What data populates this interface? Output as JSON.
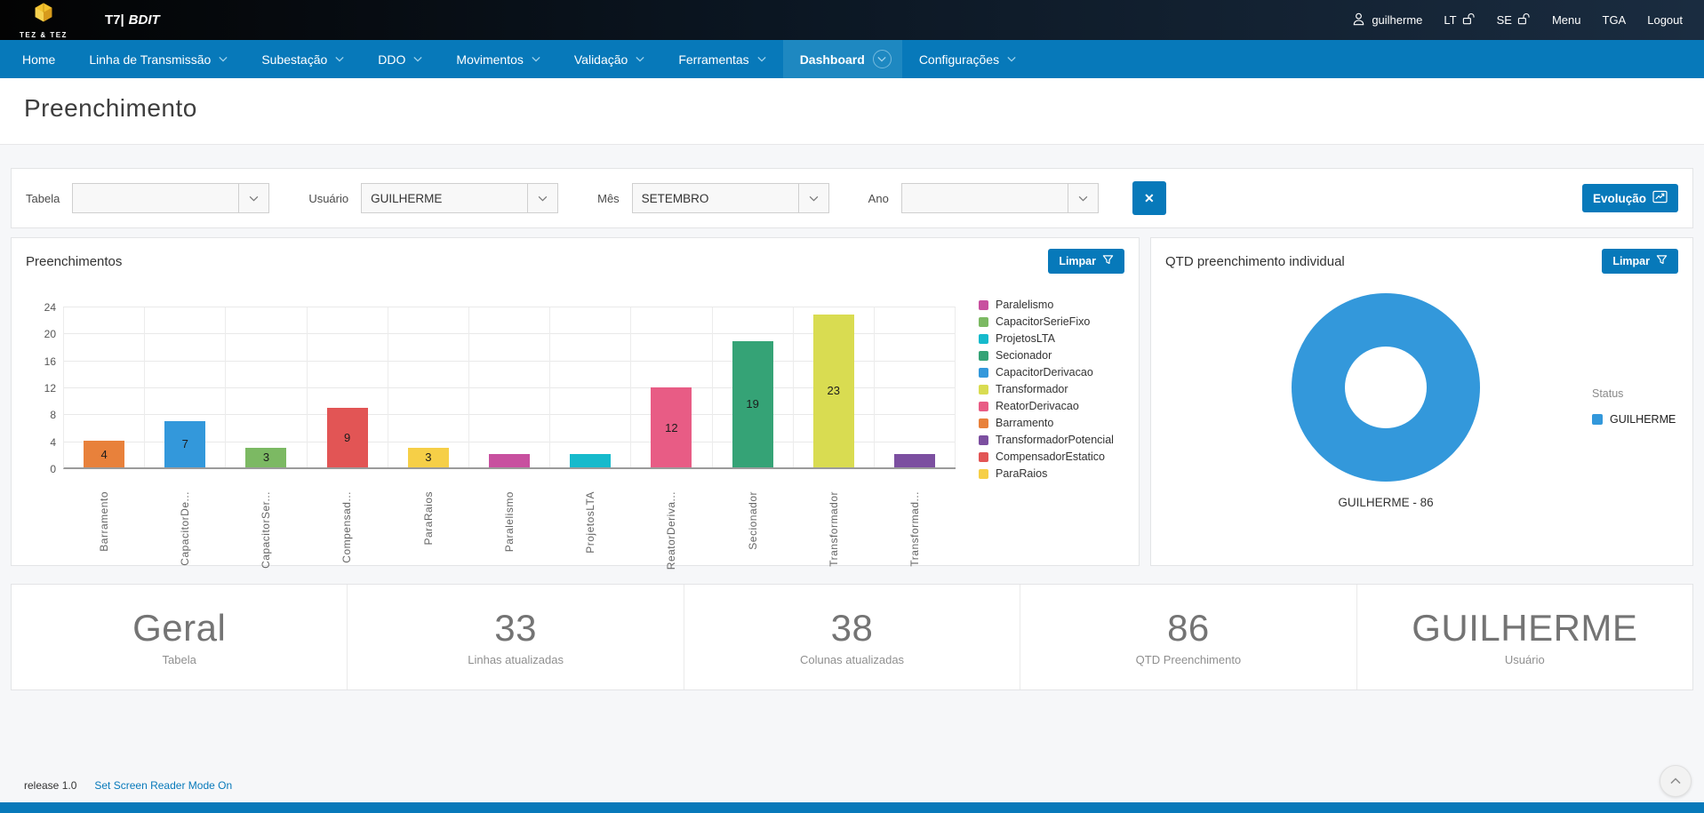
{
  "topbar": {
    "logo_text": "TEZ & TEZ",
    "app_code": "T7|",
    "app_name": "BDIT",
    "username": "guilherme",
    "lt_label": "LT",
    "se_label": "SE",
    "menu_label": "Menu",
    "tga_label": "TGA",
    "logout_label": "Logout"
  },
  "nav": {
    "items": [
      {
        "label": "Home",
        "dropdown": false,
        "active": false
      },
      {
        "label": "Linha de Transmissão",
        "dropdown": true,
        "active": false
      },
      {
        "label": "Subestação",
        "dropdown": true,
        "active": false
      },
      {
        "label": "DDO",
        "dropdown": true,
        "active": false
      },
      {
        "label": "Movimentos",
        "dropdown": true,
        "active": false
      },
      {
        "label": "Validação",
        "dropdown": true,
        "active": false
      },
      {
        "label": "Ferramentas",
        "dropdown": true,
        "active": false
      },
      {
        "label": "Dashboard",
        "dropdown": true,
        "active": true
      },
      {
        "label": "Configurações",
        "dropdown": true,
        "active": false
      }
    ]
  },
  "page": {
    "title": "Preenchimento"
  },
  "filters": {
    "tabela": {
      "label": "Tabela",
      "value": ""
    },
    "usuario": {
      "label": "Usuário",
      "value": "GUILHERME"
    },
    "mes": {
      "label": "Mês",
      "value": "SETEMBRO"
    },
    "ano": {
      "label": "Ano",
      "value": ""
    },
    "clear_label": "✕",
    "evolucao_label": "Evolução"
  },
  "panels": {
    "bar": {
      "title": "Preenchimentos",
      "limpar_label": "Limpar"
    },
    "donut": {
      "title": "QTD preenchimento individual",
      "limpar_label": "Limpar"
    }
  },
  "chart_data": [
    {
      "type": "bar",
      "title": "Preenchimentos",
      "categories": [
        "Barramento",
        "CapacitorDe...",
        "CapacitorSer...",
        "Compensad...",
        "ParaRaios",
        "Paralelismo",
        "ProjetosLTA",
        "ReatorDeriva...",
        "Secionador",
        "Transformador",
        "Transformad..."
      ],
      "values": [
        4,
        7,
        3,
        9,
        3,
        2,
        2,
        12,
        19,
        23,
        2
      ],
      "bar_colors": [
        "#e8813b",
        "#3398db",
        "#7cb963",
        "#e25555",
        "#f6cf47",
        "#c8509f",
        "#16bacc",
        "#e85c85",
        "#35a376",
        "#d9dc51",
        "#7c4fa0"
      ],
      "xlabel": "",
      "ylabel": "",
      "ylim": [
        0,
        24
      ],
      "yticks": [
        0,
        4,
        8,
        12,
        16,
        20,
        24
      ],
      "grid": true,
      "value_label_min": 3,
      "legend_position": "right",
      "legend": [
        {
          "label": "Paralelismo",
          "color": "#c8509f"
        },
        {
          "label": "CapacitorSerieFixo",
          "color": "#7cb963"
        },
        {
          "label": "ProjetosLTA",
          "color": "#16bacc"
        },
        {
          "label": "Secionador",
          "color": "#35a376"
        },
        {
          "label": "CapacitorDerivacao",
          "color": "#3398db"
        },
        {
          "label": "Transformador",
          "color": "#d9dc51"
        },
        {
          "label": "ReatorDerivacao",
          "color": "#e85c85"
        },
        {
          "label": "Barramento",
          "color": "#e8813b"
        },
        {
          "label": "TransformadorPotencial",
          "color": "#7c4fa0"
        },
        {
          "label": "CompensadorEstatico",
          "color": "#e25555"
        },
        {
          "label": "ParaRaios",
          "color": "#f6cf47"
        }
      ]
    },
    {
      "type": "pie",
      "subtype": "donut",
      "title": "QTD preenchimento individual",
      "series": [
        {
          "name": "GUILHERME",
          "value": 86
        }
      ],
      "slice_label": "GUILHERME - 86",
      "legend_title": "Status",
      "legend": [
        {
          "label": "GUILHERME",
          "color": "#3398db"
        }
      ],
      "color": "#3398db"
    }
  ],
  "stats": [
    {
      "value": "Geral",
      "label": "Tabela"
    },
    {
      "value": "33",
      "label": "Linhas atualizadas"
    },
    {
      "value": "38",
      "label": "Colunas atualizadas"
    },
    {
      "value": "86",
      "label": "QTD Preenchimento"
    },
    {
      "value": "GUILHERME",
      "label": "Usuário"
    }
  ],
  "footer": {
    "release": "release 1.0",
    "screen_reader_link": "Set Screen Reader Mode On"
  },
  "colors": {
    "navbar": "#0779ba",
    "nav_active": "#1e88c1",
    "accent": "#0779ba",
    "donut": "#3398db"
  }
}
